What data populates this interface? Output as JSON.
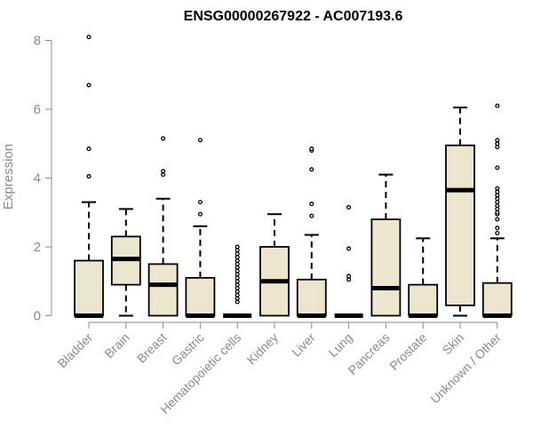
{
  "chart_data": {
    "type": "boxplot",
    "title": "ENSG00000267922 - AC007193.6",
    "xlabel": "",
    "ylabel": "Expression",
    "ylim": [
      0,
      8.3
    ],
    "yticks": [
      0,
      2,
      4,
      6,
      8
    ],
    "grid": false,
    "legend": "none",
    "colors": {
      "box_fill": "#ede6cf",
      "stroke": "#000000",
      "axis_text": "#8a8a8a"
    },
    "categories": [
      "Bladder",
      "Brain",
      "Breast",
      "Gastric",
      "Hematopoietic cells",
      "Kidney",
      "Liver",
      "Lung",
      "Pancreas",
      "Prostate",
      "Skin",
      "Unknown / Other"
    ],
    "boxes": [
      {
        "q1": 0,
        "median": 0,
        "q3": 1.6,
        "whisker_low": 0,
        "whisker_high": 3.3,
        "outliers": [
          4.05,
          4.85,
          6.7,
          8.1
        ]
      },
      {
        "q1": 0.9,
        "median": 1.65,
        "q3": 2.3,
        "whisker_low": 0,
        "whisker_high": 3.1,
        "outliers": []
      },
      {
        "q1": 0,
        "median": 0.9,
        "q3": 1.5,
        "whisker_low": 0,
        "whisker_high": 3.4,
        "outliers": [
          4.1,
          4.2,
          5.15
        ]
      },
      {
        "q1": 0,
        "median": 0,
        "q3": 1.1,
        "whisker_low": 0,
        "whisker_high": 2.6,
        "outliers": [
          2.95,
          3.3,
          5.1
        ]
      },
      {
        "q1": 0,
        "median": 0,
        "q3": 0,
        "whisker_low": 0,
        "whisker_high": 0,
        "outliers": [
          0.4,
          0.5,
          0.6,
          0.7,
          0.8,
          0.9,
          1.0,
          1.1,
          1.2,
          1.3,
          1.4,
          1.5,
          1.6,
          1.7,
          1.8,
          1.9,
          2.0
        ]
      },
      {
        "q1": 0,
        "median": 1.0,
        "q3": 2.0,
        "whisker_low": 0,
        "whisker_high": 2.95,
        "outliers": []
      },
      {
        "q1": 0,
        "median": 0,
        "q3": 1.05,
        "whisker_low": 0,
        "whisker_high": 2.35,
        "outliers": [
          2.9,
          3.25,
          4.25,
          4.8,
          4.85
        ]
      },
      {
        "q1": 0,
        "median": 0,
        "q3": 0,
        "whisker_low": 0,
        "whisker_high": 0,
        "outliers": [
          1.05,
          1.15,
          1.95,
          3.15
        ]
      },
      {
        "q1": 0,
        "median": 0.8,
        "q3": 2.8,
        "whisker_low": 0,
        "whisker_high": 4.1,
        "outliers": []
      },
      {
        "q1": 0,
        "median": 0,
        "q3": 0.9,
        "whisker_low": 0,
        "whisker_high": 2.25,
        "outliers": []
      },
      {
        "q1": 0.3,
        "median": 3.65,
        "q3": 4.95,
        "whisker_low": 0,
        "whisker_high": 6.05,
        "outliers": []
      },
      {
        "q1": 0,
        "median": 0,
        "q3": 0.95,
        "whisker_low": 0,
        "whisker_high": 2.25,
        "outliers": [
          2.4,
          2.55,
          2.8,
          2.95,
          3.0,
          3.1,
          3.2,
          3.3,
          3.4,
          3.5,
          3.6,
          3.7,
          4.3,
          4.9,
          5.0,
          5.1,
          6.1
        ]
      }
    ]
  }
}
